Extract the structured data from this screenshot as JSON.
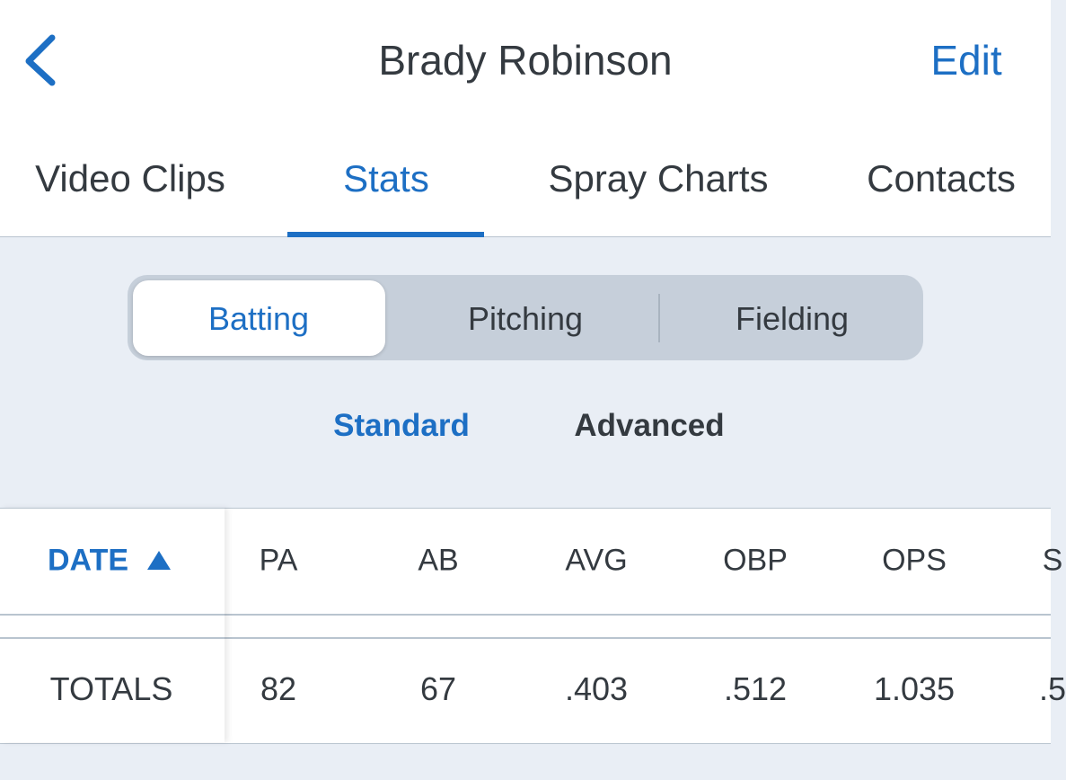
{
  "header": {
    "title": "Brady Robinson",
    "action": "Edit"
  },
  "tabs": {
    "items": [
      "Video Clips",
      "Stats",
      "Spray Charts",
      "Contacts"
    ],
    "active": "Stats"
  },
  "segments": {
    "items": [
      "Batting",
      "Pitching",
      "Fielding"
    ],
    "active": "Batting"
  },
  "subtabs": {
    "items": [
      "Standard",
      "Advanced"
    ],
    "active": "Standard"
  },
  "table": {
    "columns": [
      "DATE",
      "PA",
      "AB",
      "AVG",
      "OBP",
      "OPS",
      "S"
    ],
    "rows": [
      [
        "TOTALS",
        "82",
        "67",
        ".403",
        ".512",
        "1.035",
        ".5"
      ]
    ]
  }
}
